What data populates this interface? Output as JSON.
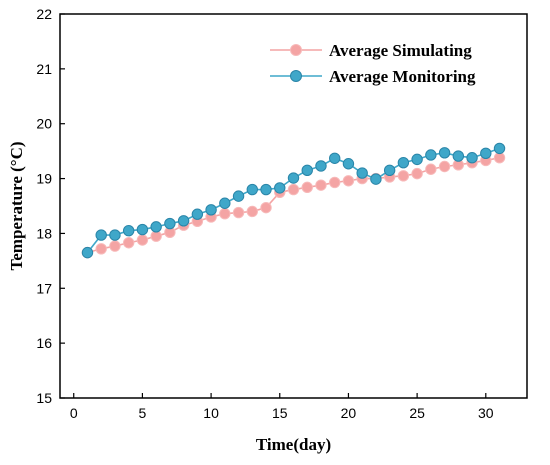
{
  "chart_data": {
    "type": "line",
    "title": "",
    "xlabel": "Time(day)",
    "ylabel": "Temperature (°C)",
    "xlim": [
      -1,
      33
    ],
    "ylim": [
      15,
      22
    ],
    "xticks": [
      0,
      5,
      10,
      15,
      20,
      25,
      30
    ],
    "yticks": [
      15,
      16,
      17,
      18,
      19,
      20,
      21,
      22
    ],
    "grid": false,
    "legend_position": "top-right",
    "x": [
      1,
      2,
      3,
      4,
      5,
      6,
      7,
      8,
      9,
      10,
      11,
      12,
      13,
      14,
      15,
      16,
      17,
      18,
      19,
      20,
      21,
      22,
      23,
      24,
      25,
      26,
      27,
      28,
      29,
      30,
      31
    ],
    "series": [
      {
        "name": "Average Simulating",
        "color": "#f4a4a4",
        "marker_edge": "#f7b9b9",
        "values": [
          17.65,
          17.72,
          17.77,
          17.83,
          17.88,
          17.95,
          18.02,
          18.15,
          18.22,
          18.3,
          18.36,
          18.38,
          18.4,
          18.47,
          18.75,
          18.8,
          18.84,
          18.88,
          18.93,
          18.96,
          19.0,
          19.0,
          19.03,
          19.05,
          19.09,
          19.17,
          19.22,
          19.25,
          19.29,
          19.33,
          19.38
        ]
      },
      {
        "name": "Average Monitoring",
        "color": "#3fa7c9",
        "marker_edge": "#2a85a8",
        "values": [
          17.65,
          17.97,
          17.97,
          18.05,
          18.07,
          18.12,
          18.18,
          18.23,
          18.35,
          18.43,
          18.55,
          18.68,
          18.8,
          18.8,
          18.83,
          19.01,
          19.15,
          19.23,
          19.37,
          19.27,
          19.1,
          18.99,
          19.15,
          19.29,
          19.35,
          19.43,
          19.47,
          19.41,
          19.38,
          19.46,
          19.55
        ]
      }
    ]
  }
}
